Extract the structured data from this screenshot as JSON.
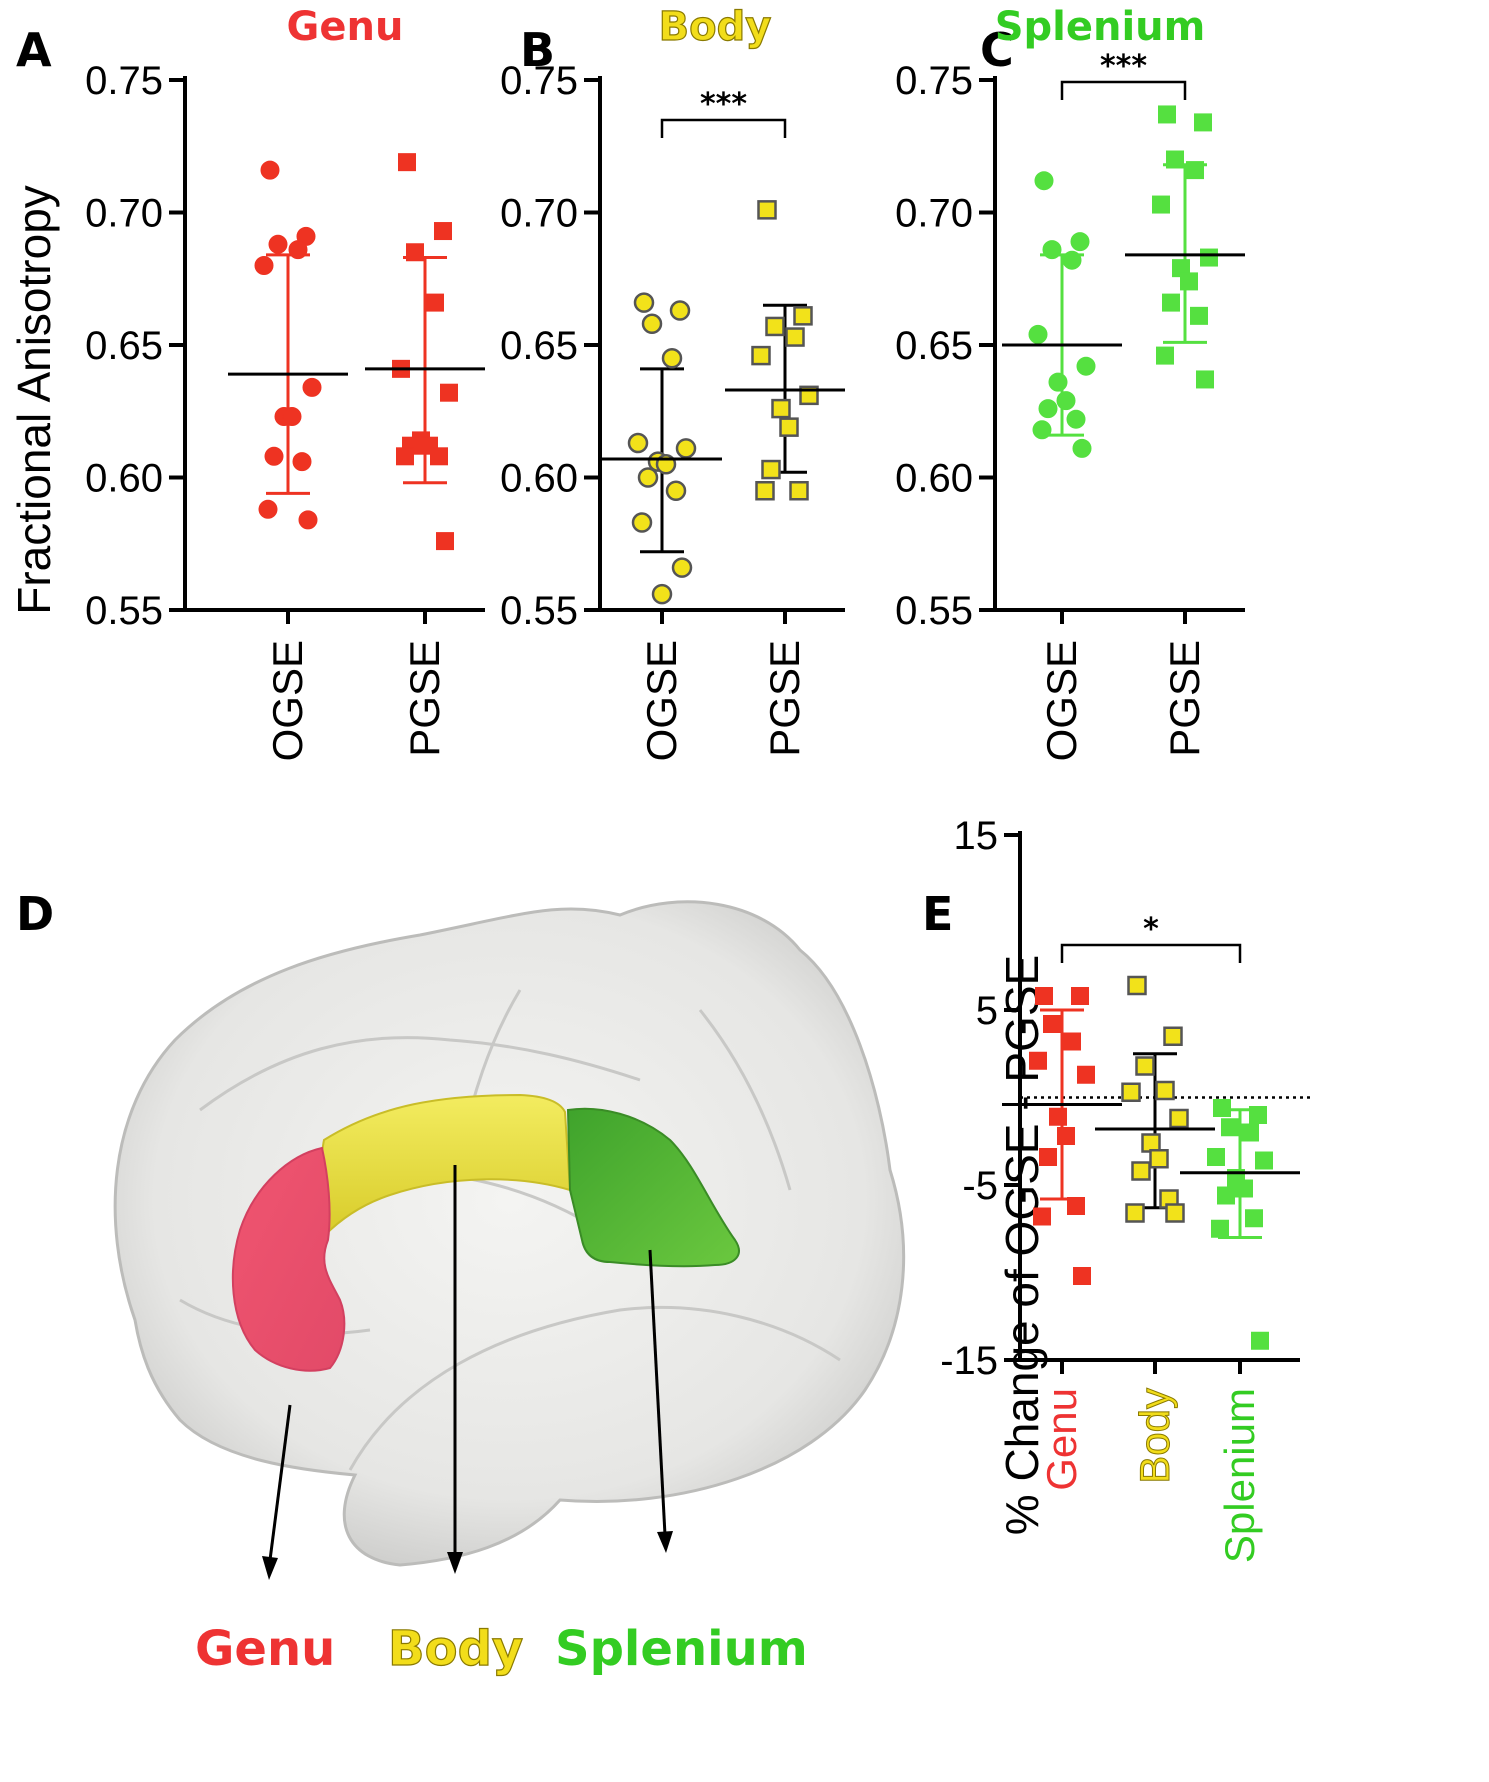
{
  "chart_data": [
    {
      "panel": "A",
      "type": "scatter",
      "title": "Genu",
      "title_color": "#ee3333",
      "ylabel": "Fractional Anisotropy",
      "ylim": [
        0.55,
        0.75
      ],
      "yticks": [
        "0.55",
        "0.60",
        "0.65",
        "0.70",
        "0.75"
      ],
      "categories": [
        "OGSE",
        "PGSE"
      ],
      "series": [
        {
          "name": "OGSE",
          "marker": "circle",
          "filled": true,
          "color": "#ee3322",
          "values": [
            0.716,
            0.691,
            0.688,
            0.686,
            0.68,
            0.634,
            0.623,
            0.623,
            0.608,
            0.606,
            0.588,
            0.584
          ],
          "mean": 0.639,
          "sd_low": 0.594,
          "sd_high": 0.684
        },
        {
          "name": "PGSE",
          "marker": "square",
          "filled": true,
          "color": "#ee3322",
          "values": [
            0.719,
            0.693,
            0.685,
            0.666,
            0.641,
            0.632,
            0.614,
            0.612,
            0.612,
            0.608,
            0.608,
            0.576
          ],
          "mean": 0.641,
          "sd_low": 0.598,
          "sd_high": 0.683
        }
      ],
      "annotation": ""
    },
    {
      "panel": "B",
      "type": "scatter",
      "title": "Body",
      "title_color": "#f2dd1a",
      "ylabel": "",
      "ylim": [
        0.55,
        0.75
      ],
      "yticks": [
        "0.55",
        "0.60",
        "0.65",
        "0.70",
        "0.75"
      ],
      "categories": [
        "OGSE",
        "PGSE"
      ],
      "series": [
        {
          "name": "OGSE",
          "marker": "circle",
          "filled": false,
          "color": "#f2e21a",
          "values": [
            0.666,
            0.663,
            0.658,
            0.645,
            0.613,
            0.611,
            0.606,
            0.605,
            0.6,
            0.595,
            0.583,
            0.566,
            0.556
          ],
          "mean": 0.607,
          "sd_low": 0.572,
          "sd_high": 0.641
        },
        {
          "name": "PGSE",
          "marker": "square",
          "filled": false,
          "color": "#f2e21a",
          "values": [
            0.701,
            0.661,
            0.657,
            0.653,
            0.646,
            0.631,
            0.626,
            0.619,
            0.603,
            0.595,
            0.595
          ],
          "mean": 0.633,
          "sd_low": 0.602,
          "sd_high": 0.665
        }
      ],
      "annotation": "***"
    },
    {
      "panel": "C",
      "type": "scatter",
      "title": "Splenium",
      "title_color": "#33cc22",
      "ylabel": "",
      "ylim": [
        0.55,
        0.75
      ],
      "yticks": [
        "0.55",
        "0.60",
        "0.65",
        "0.70",
        "0.75"
      ],
      "categories": [
        "OGSE",
        "PGSE"
      ],
      "series": [
        {
          "name": "OGSE",
          "marker": "circle",
          "filled": true,
          "color": "#55e040",
          "values": [
            0.712,
            0.689,
            0.686,
            0.682,
            0.654,
            0.642,
            0.636,
            0.629,
            0.626,
            0.622,
            0.618,
            0.611
          ],
          "mean": 0.65,
          "sd_low": 0.616,
          "sd_high": 0.684
        },
        {
          "name": "PGSE",
          "marker": "square",
          "filled": true,
          "color": "#55e040",
          "values": [
            0.737,
            0.734,
            0.72,
            0.716,
            0.703,
            0.683,
            0.679,
            0.674,
            0.666,
            0.661,
            0.646,
            0.637
          ],
          "mean": 0.684,
          "sd_low": 0.651,
          "sd_high": 0.718
        }
      ],
      "annotation": "***"
    },
    {
      "panel": "E",
      "type": "scatter",
      "title": "",
      "ylabel": "% Change of OGSE - PGSE",
      "ylim": [
        -15,
        15
      ],
      "yticks": [
        "-15",
        "-5",
        "5",
        "15"
      ],
      "zero_line": 0,
      "categories": [
        "Genu",
        "Body",
        "Splenium"
      ],
      "category_colors": [
        "#ee3333",
        "#f2dd1a",
        "#33cc22"
      ],
      "series": [
        {
          "name": "Genu",
          "marker": "square",
          "filled": true,
          "color": "#ee3322",
          "values": [
            5.8,
            5.8,
            4.2,
            3.2,
            2.1,
            1.3,
            -1.1,
            -2.2,
            -3.4,
            -6.2,
            -6.8,
            -10.2
          ],
          "mean": -0.4,
          "sd_low": -5.8,
          "sd_high": 5.0
        },
        {
          "name": "Body",
          "marker": "square",
          "filled": false,
          "color": "#f2e21a",
          "values": [
            6.4,
            3.5,
            1.8,
            0.4,
            0.3,
            -1.2,
            -2.6,
            -3.5,
            -4.2,
            -5.8,
            -6.6,
            -6.6
          ],
          "mean": -1.8,
          "sd_low": -6.3,
          "sd_high": 2.5
        },
        {
          "name": "Splenium",
          "marker": "square",
          "filled": true,
          "color": "#55e040",
          "values": [
            -0.6,
            -1.0,
            -1.7,
            -2.0,
            -3.4,
            -3.6,
            -4.6,
            -5.2,
            -5.6,
            -6.9,
            -7.5,
            -13.9
          ],
          "mean": -4.3,
          "sd_low": -8.0,
          "sd_high": -0.7
        }
      ],
      "annotation": "*"
    }
  ],
  "brain": {
    "panel": "D",
    "labels": [
      {
        "text": "Genu",
        "color": "#ee3333"
      },
      {
        "text": "Body",
        "color": "#f2dd1a"
      },
      {
        "text": "Splenium",
        "color": "#33cc22"
      }
    ]
  }
}
